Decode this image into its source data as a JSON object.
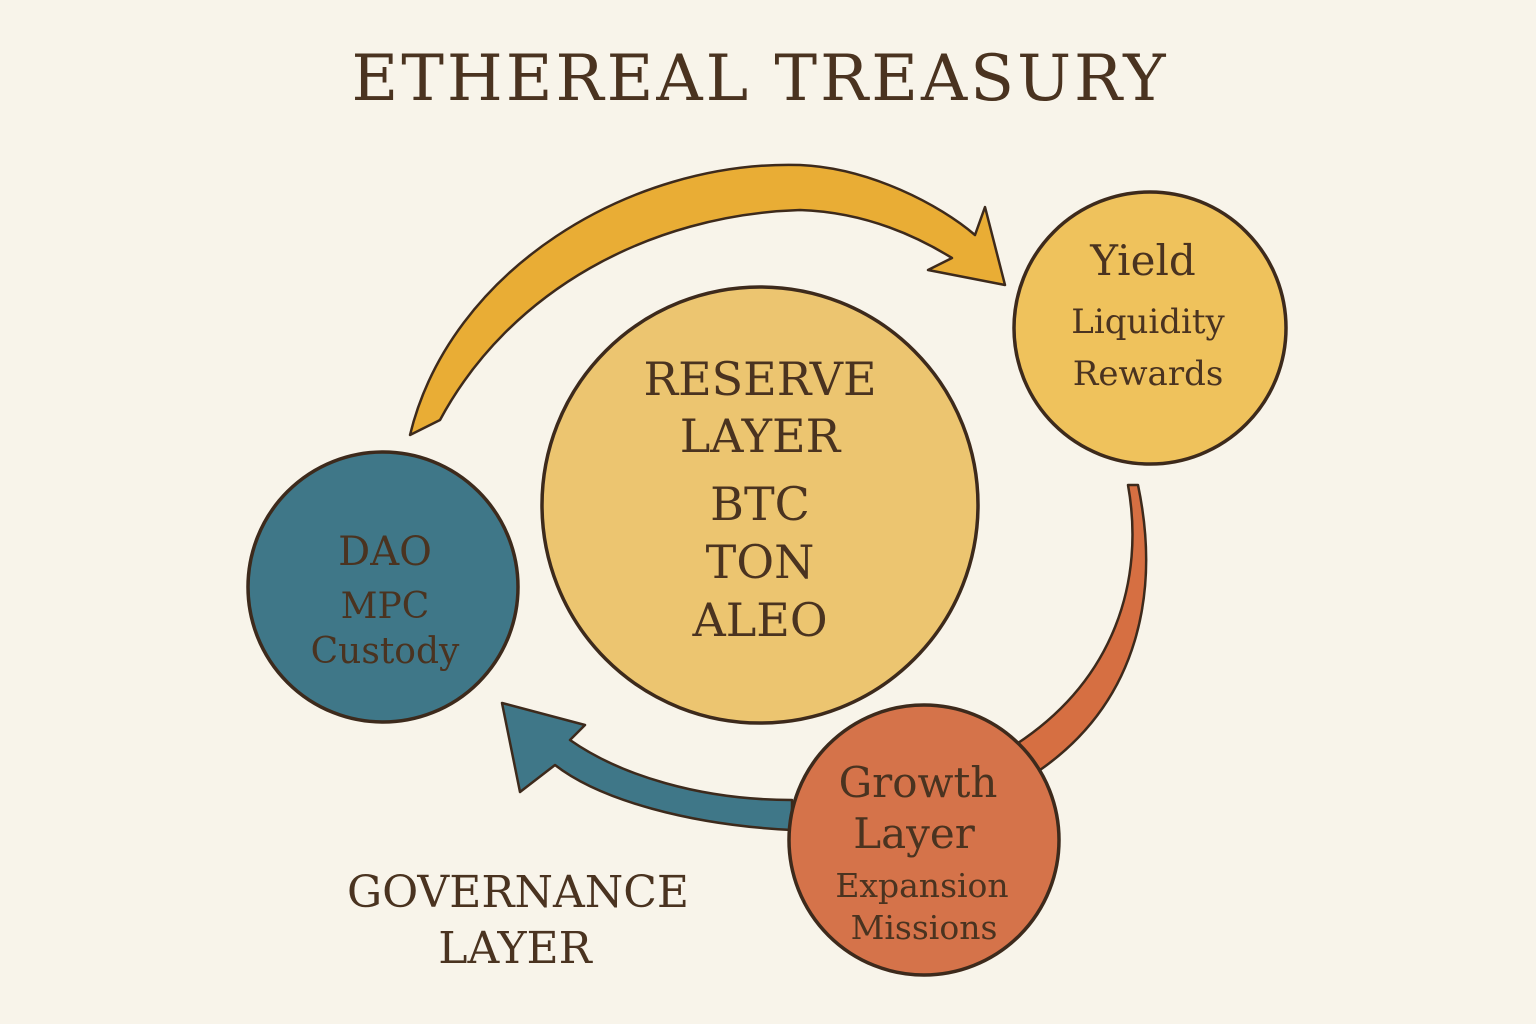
{
  "title": "ETHEREAL TREASURY",
  "colors": {
    "background": "#f8f4ea",
    "text": "#4a3320",
    "outline": "#3d2a1c",
    "reserve_fill": "#ecc570",
    "yield_fill": "#efc25c",
    "dao_fill": "#3f7788",
    "growth_fill": "#d5734a",
    "arrow_gold": "#e9ad35",
    "arrow_orange": "#d66f42",
    "arrow_teal": "#3f7788"
  },
  "reserve": {
    "line1": "RESERVE",
    "line2": "LAYER",
    "assets": [
      "BTC",
      "TON",
      "ALEO"
    ]
  },
  "yield": {
    "title": "Yield",
    "line1": "Liquidity",
    "line2": "Rewards"
  },
  "dao": {
    "title": "DAO",
    "line1": "MPC",
    "line2": "Custody"
  },
  "growth": {
    "line1": "Growth",
    "line2": "Layer",
    "line3": "Expansion",
    "line4": "Missions"
  },
  "governance": {
    "line1": "GOVERNANCE",
    "line2": "LAYER"
  },
  "flow": [
    {
      "from": "DAO",
      "to": "Yield",
      "color": "arrow_gold"
    },
    {
      "from": "Yield",
      "to": "Growth Layer",
      "color": "arrow_orange"
    },
    {
      "from": "Growth Layer",
      "to": "DAO",
      "color": "arrow_teal"
    }
  ]
}
